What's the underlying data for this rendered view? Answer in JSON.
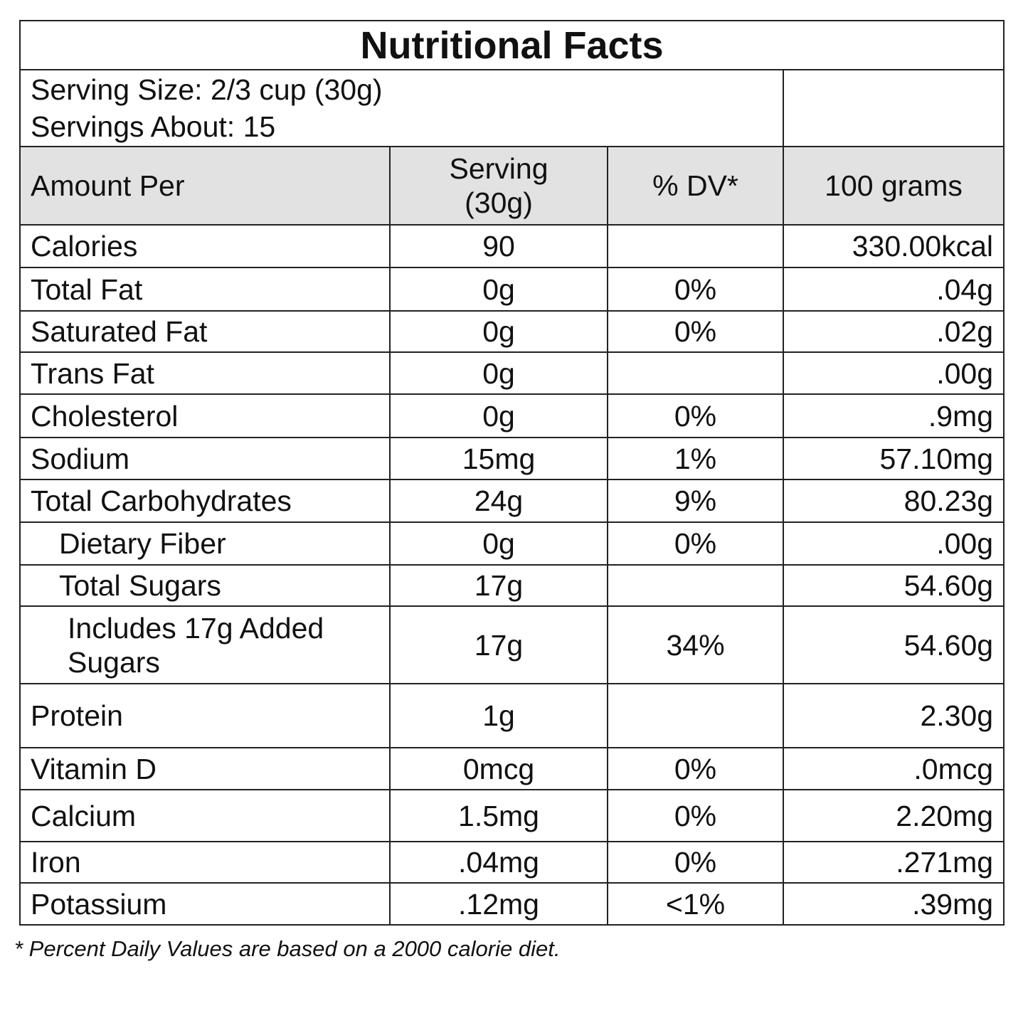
{
  "title": "Nutritional Facts",
  "serving_size": "Serving Size: 2/3 cup (30g)",
  "servings_about": "Servings About: 15",
  "headers": {
    "amount": "Amount Per",
    "serving_line1": "Serving",
    "serving_line2": "(30g)",
    "dv": "% DV*",
    "per100": "100 grams"
  },
  "rows": [
    {
      "name": "Calories",
      "serving": "90",
      "dv": "",
      "per100": "330.00kcal",
      "indent": 0
    },
    {
      "name": "Total Fat",
      "serving": "0g",
      "dv": "0%",
      "per100": ".04g",
      "indent": 0
    },
    {
      "name": "Saturated Fat",
      "serving": "0g",
      "dv": "0%",
      "per100": ".02g",
      "indent": 0
    },
    {
      "name": "Trans Fat",
      "serving": "0g",
      "dv": "",
      "per100": ".00g",
      "indent": 0
    },
    {
      "name": "Cholesterol",
      "serving": "0g",
      "dv": "0%",
      "per100": ".9mg",
      "indent": 0
    },
    {
      "name": "Sodium",
      "serving": "15mg",
      "dv": "1%",
      "per100": "57.10mg",
      "indent": 0
    },
    {
      "name": "Total Carbohydrates",
      "serving": "24g",
      "dv": "9%",
      "per100": "80.23g",
      "indent": 0
    },
    {
      "name": "Dietary Fiber",
      "serving": "0g",
      "dv": "0%",
      "per100": ".00g",
      "indent": 1
    },
    {
      "name": "Total Sugars",
      "serving": "17g",
      "dv": "",
      "per100": "54.60g",
      "indent": 1
    },
    {
      "name": "Includes 17g Added Sugars",
      "serving": "17g",
      "dv": "34%",
      "per100": "54.60g",
      "indent": 2
    },
    {
      "name": "Protein",
      "serving": "1g",
      "dv": "",
      "per100": "2.30g",
      "indent": 0
    },
    {
      "name": "Vitamin D",
      "serving": "0mcg",
      "dv": "0%",
      "per100": ".0mcg",
      "indent": 0
    },
    {
      "name": "Calcium",
      "serving": "1.5mg",
      "dv": "0%",
      "per100": "2.20mg",
      "indent": 0
    },
    {
      "name": "Iron",
      "serving": ".04mg",
      "dv": "0%",
      "per100": ".271mg",
      "indent": 0
    },
    {
      "name": "Potassium",
      "serving": ".12mg",
      "dv": "<1%",
      "per100": ".39mg",
      "indent": 0
    }
  ],
  "footnote": "* Percent Daily Values are based on a 2000 calorie diet."
}
